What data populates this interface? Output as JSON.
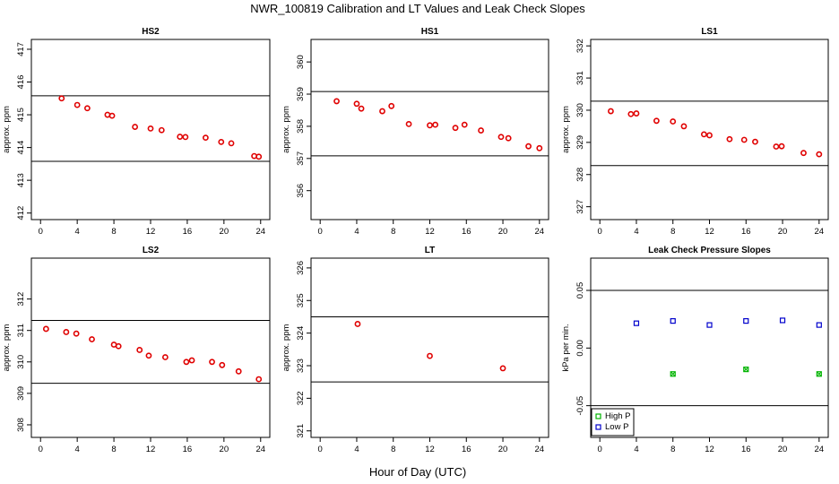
{
  "title": "NWR_100819  Calibration and LT Values and Leak Check Slopes",
  "xlabel": "Hour of Day (UTC)",
  "colors": {
    "high": "#00b400",
    "low": "#0000cc",
    "point": "#e00000"
  },
  "chart_data": [
    {
      "type": "scatter",
      "title": "HS2",
      "ylabel": "approx. ppm",
      "xlim": [
        -1,
        25
      ],
      "xticks": [
        0,
        4,
        8,
        12,
        16,
        20,
        24
      ],
      "ylim": [
        411.8,
        417.3
      ],
      "yticks": [
        412,
        413,
        414,
        415,
        416,
        417
      ],
      "hlines": [
        415.58,
        413.58
      ],
      "series": [
        {
          "color": "#e00000",
          "x": [
            2.3,
            4.0,
            5.1,
            7.3,
            7.8,
            10.3,
            12.0,
            13.2,
            15.2,
            15.8,
            18.0,
            19.7,
            20.8,
            23.3,
            23.8
          ],
          "y": [
            415.5,
            415.3,
            415.2,
            415.0,
            414.97,
            414.63,
            414.58,
            414.53,
            414.33,
            414.32,
            414.3,
            414.17,
            414.13,
            413.74,
            413.72
          ]
        }
      ]
    },
    {
      "type": "scatter",
      "title": "HS1",
      "ylabel": "approx. ppm",
      "xlim": [
        -1,
        25
      ],
      "xticks": [
        0,
        4,
        8,
        12,
        16,
        20,
        24
      ],
      "ylim": [
        355.1,
        360.7
      ],
      "yticks": [
        356,
        357,
        358,
        359,
        360
      ],
      "hlines": [
        359.08,
        357.08
      ],
      "series": [
        {
          "color": "#e00000",
          "x": [
            1.8,
            4.0,
            4.5,
            6.8,
            7.8,
            9.7,
            12.0,
            12.6,
            14.8,
            15.8,
            17.6,
            19.8,
            20.6,
            22.8,
            24.0
          ],
          "y": [
            358.78,
            358.7,
            358.55,
            358.47,
            358.63,
            358.07,
            358.03,
            358.05,
            357.95,
            358.05,
            357.87,
            357.67,
            357.63,
            357.38,
            357.32
          ]
        }
      ]
    },
    {
      "type": "scatter",
      "title": "LS1",
      "ylabel": "approx. ppm",
      "xlim": [
        -1,
        25
      ],
      "xticks": [
        0,
        4,
        8,
        12,
        16,
        20,
        24
      ],
      "ylim": [
        326.6,
        332.2
      ],
      "yticks": [
        327,
        328,
        329,
        330,
        331,
        332
      ],
      "hlines": [
        330.28,
        328.28
      ],
      "series": [
        {
          "color": "#e00000",
          "x": [
            1.2,
            3.4,
            4.0,
            6.2,
            8.0,
            9.2,
            11.4,
            12.0,
            14.2,
            15.8,
            17.0,
            19.3,
            19.9,
            22.3,
            24.0
          ],
          "y": [
            329.97,
            329.88,
            329.9,
            329.67,
            329.65,
            329.5,
            329.25,
            329.22,
            329.1,
            329.08,
            329.02,
            328.87,
            328.88,
            328.67,
            328.63
          ]
        }
      ]
    },
    {
      "type": "scatter",
      "title": "LS2",
      "ylabel": "approx. ppm",
      "xlim": [
        -1,
        25
      ],
      "xticks": [
        0,
        4,
        8,
        12,
        16,
        20,
        24
      ],
      "ylim": [
        307.6,
        313.3
      ],
      "yticks": [
        308,
        309,
        310,
        311,
        312
      ],
      "hlines": [
        311.32,
        309.32
      ],
      "series": [
        {
          "color": "#e00000",
          "x": [
            0.6,
            2.8,
            3.9,
            5.6,
            8.0,
            8.5,
            10.8,
            11.8,
            13.6,
            15.9,
            16.5,
            18.7,
            19.8,
            21.6,
            23.8
          ],
          "y": [
            311.05,
            310.95,
            310.9,
            310.72,
            310.55,
            310.5,
            310.38,
            310.2,
            310.15,
            310.0,
            310.05,
            310.0,
            309.9,
            309.7,
            309.45
          ]
        }
      ]
    },
    {
      "type": "scatter",
      "title": "LT",
      "ylabel": "approx. ppm",
      "xlim": [
        -1,
        25
      ],
      "xticks": [
        0,
        4,
        8,
        12,
        16,
        20,
        24
      ],
      "ylim": [
        320.8,
        326.3
      ],
      "yticks": [
        321,
        322,
        323,
        324,
        325,
        326
      ],
      "hlines": [
        324.5,
        322.5
      ],
      "series": [
        {
          "color": "#e00000",
          "x": [
            4.1,
            12.0,
            20.0
          ],
          "y": [
            324.28,
            323.3,
            322.92
          ]
        }
      ]
    },
    {
      "type": "scatter",
      "title": "Leak Check Pressure Slopes",
      "ylabel": "kPa per min.",
      "xlim": [
        -1,
        25
      ],
      "xticks": [
        0,
        4,
        8,
        12,
        16,
        20,
        24
      ],
      "ylim": [
        -0.0775,
        0.078
      ],
      "yticks": [
        -0.05,
        0.0,
        0.05
      ],
      "ytick_labels": [
        "-0.05",
        "0.00",
        "0.05"
      ],
      "hlines": [
        0.05,
        -0.05
      ],
      "legend": {
        "position": "bottom-left",
        "entries": [
          {
            "label": "High P",
            "color": "#00b400"
          },
          {
            "label": "Low P",
            "color": "#0000cc"
          }
        ]
      },
      "series": [
        {
          "name": "High P",
          "color": "#00b400",
          "x": [
            8.0,
            16.0,
            24.0
          ],
          "y": [
            -0.0225,
            -0.0185,
            -0.0225
          ]
        },
        {
          "name": "Low P",
          "color": "#0000cc",
          "x": [
            4.0,
            8.0,
            12.0,
            16.0,
            20.0,
            24.0
          ],
          "y": [
            0.0215,
            0.0235,
            0.02,
            0.0235,
            0.024,
            0.02
          ]
        }
      ]
    }
  ]
}
